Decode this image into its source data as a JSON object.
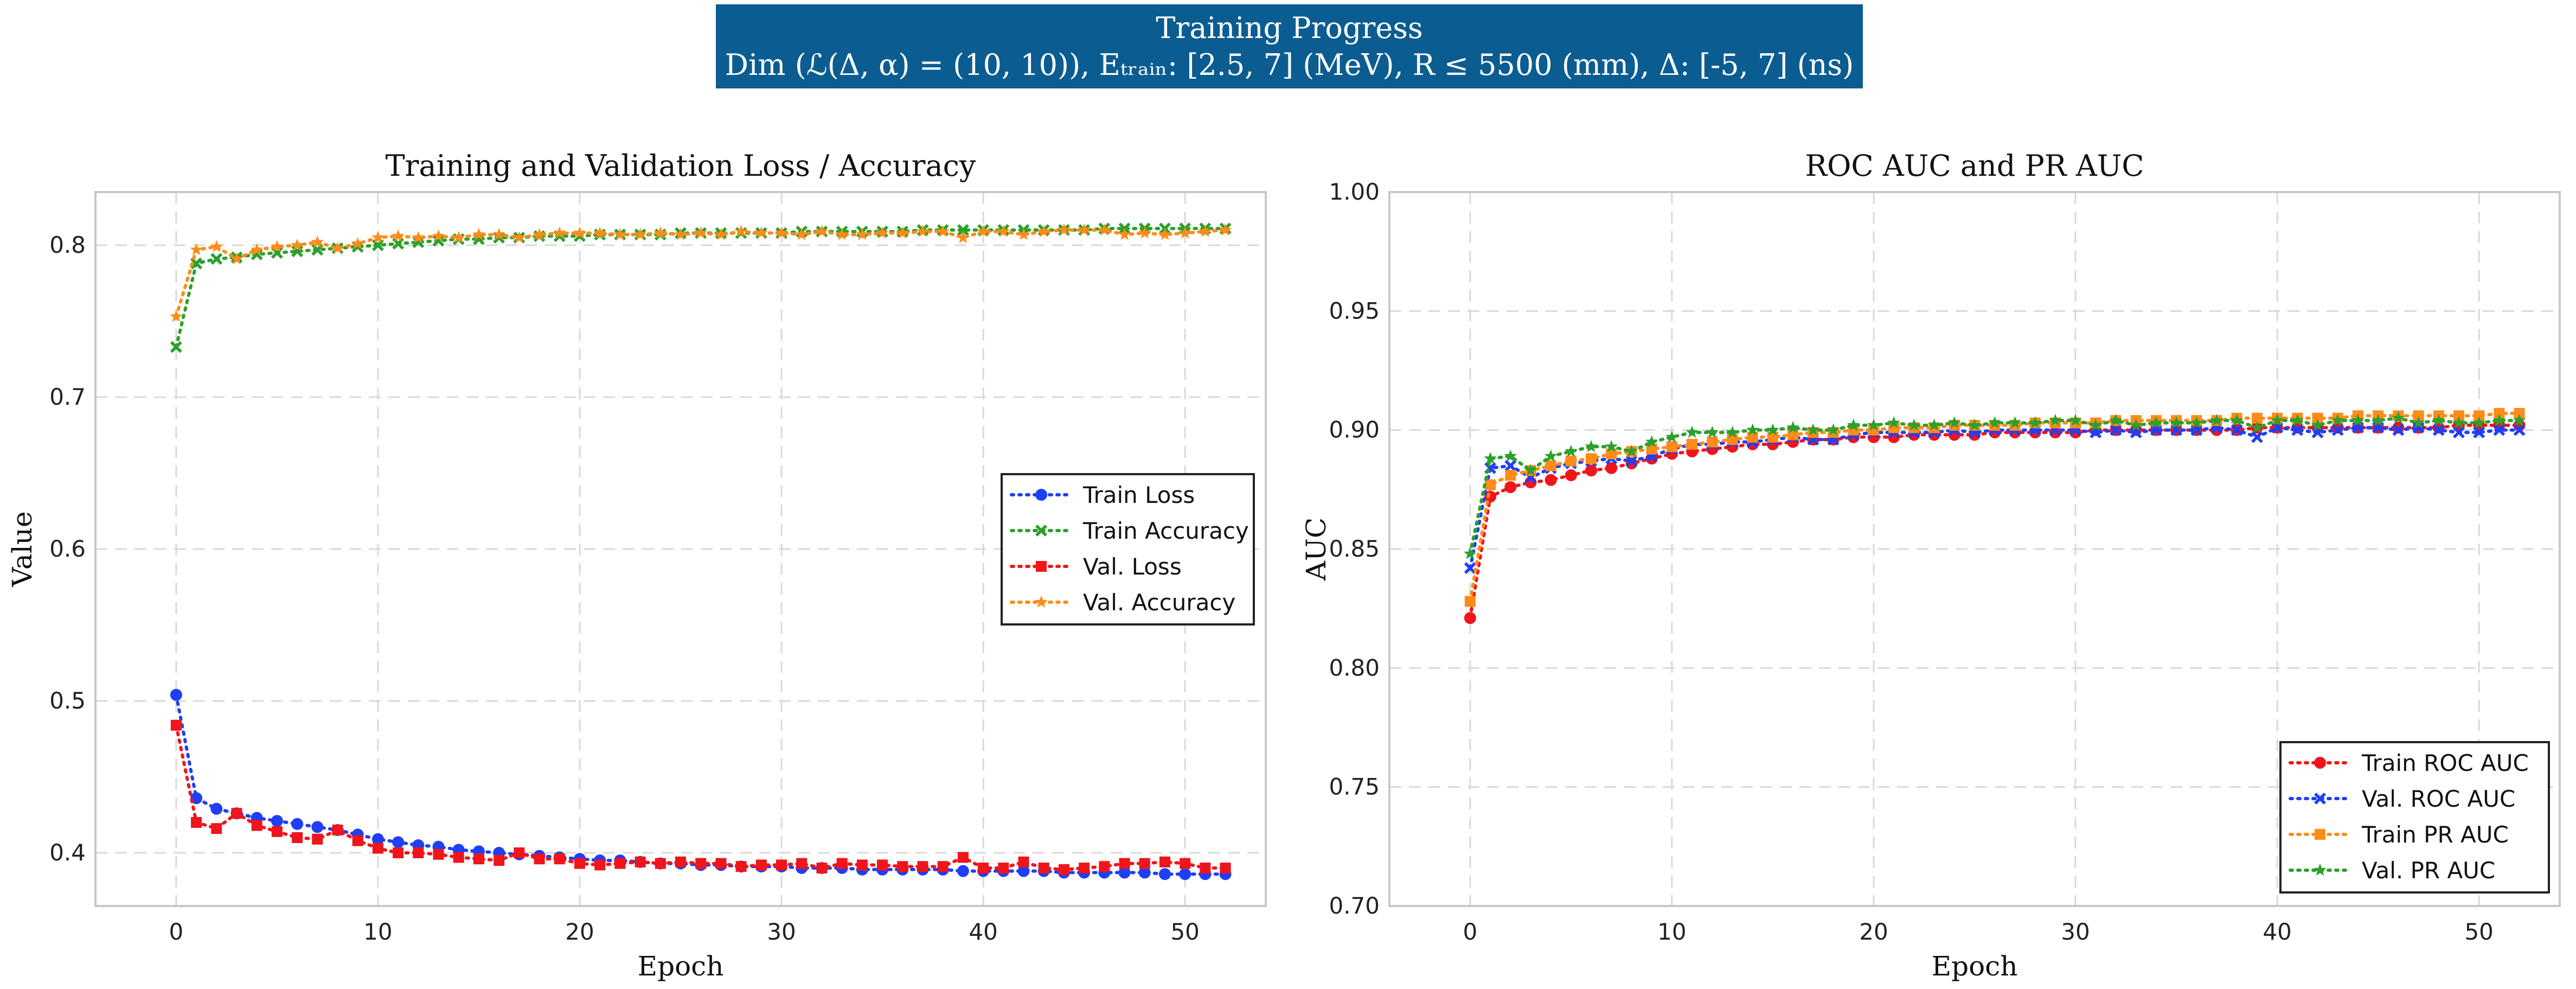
{
  "header": {
    "title": "Training Progress",
    "subtitle": "Dim (ℒ(Δ, α) = (10, 10)), Eₜᵣₐᵢₙ: [2.5, 7] (MeV), R ≤ 5500 (mm), Δ: [-5, 7] (ns)"
  },
  "chart_data": [
    {
      "type": "line",
      "title": "Training and Validation Loss / Accuracy",
      "xlabel": "Epoch",
      "ylabel": "Value",
      "xlim": [
        -4,
        54
      ],
      "ylim": [
        0.365,
        0.835
      ],
      "xticks": [
        0,
        10,
        20,
        30,
        40,
        50
      ],
      "yticks": [
        0.4,
        0.5,
        0.6,
        0.7,
        0.8
      ],
      "grid": true,
      "legend": "center-right",
      "x": [
        0,
        1,
        2,
        3,
        4,
        5,
        6,
        7,
        8,
        9,
        10,
        11,
        12,
        13,
        14,
        15,
        16,
        17,
        18,
        19,
        20,
        21,
        22,
        23,
        24,
        25,
        26,
        27,
        28,
        29,
        30,
        31,
        32,
        33,
        34,
        35,
        36,
        37,
        38,
        39,
        40,
        41,
        42,
        43,
        44,
        45,
        46,
        47,
        48,
        49,
        50,
        51,
        52
      ],
      "series": [
        {
          "name": "Train Loss",
          "color": "#1f3ff5",
          "marker": "circle",
          "values": [
            0.504,
            0.436,
            0.429,
            0.426,
            0.423,
            0.421,
            0.419,
            0.417,
            0.415,
            0.412,
            0.409,
            0.407,
            0.405,
            0.404,
            0.402,
            0.401,
            0.4,
            0.399,
            0.398,
            0.397,
            0.396,
            0.395,
            0.395,
            0.394,
            0.393,
            0.393,
            0.392,
            0.392,
            0.391,
            0.391,
            0.391,
            0.39,
            0.39,
            0.39,
            0.389,
            0.389,
            0.389,
            0.389,
            0.389,
            0.388,
            0.388,
            0.388,
            0.388,
            0.388,
            0.387,
            0.387,
            0.387,
            0.387,
            0.387,
            0.386,
            0.386,
            0.386,
            0.386
          ]
        },
        {
          "name": "Train Accuracy",
          "color": "#2ca02c",
          "marker": "x",
          "values": [
            0.733,
            0.788,
            0.791,
            0.792,
            0.794,
            0.795,
            0.796,
            0.797,
            0.798,
            0.799,
            0.8,
            0.801,
            0.802,
            0.803,
            0.804,
            0.804,
            0.805,
            0.805,
            0.806,
            0.806,
            0.806,
            0.807,
            0.807,
            0.807,
            0.807,
            0.808,
            0.808,
            0.808,
            0.808,
            0.808,
            0.808,
            0.809,
            0.809,
            0.809,
            0.809,
            0.809,
            0.809,
            0.81,
            0.81,
            0.81,
            0.81,
            0.81,
            0.81,
            0.81,
            0.81,
            0.81,
            0.811,
            0.811,
            0.811,
            0.811,
            0.811,
            0.811,
            0.811
          ]
        },
        {
          "name": "Val. Loss",
          "color": "#f0151b",
          "marker": "square",
          "values": [
            0.484,
            0.42,
            0.416,
            0.426,
            0.418,
            0.414,
            0.41,
            0.409,
            0.415,
            0.408,
            0.403,
            0.4,
            0.4,
            0.399,
            0.397,
            0.396,
            0.395,
            0.4,
            0.396,
            0.396,
            0.393,
            0.392,
            0.393,
            0.394,
            0.393,
            0.394,
            0.393,
            0.393,
            0.391,
            0.392,
            0.392,
            0.393,
            0.39,
            0.393,
            0.392,
            0.392,
            0.391,
            0.391,
            0.391,
            0.397,
            0.39,
            0.39,
            0.394,
            0.39,
            0.389,
            0.39,
            0.391,
            0.393,
            0.393,
            0.394,
            0.393,
            0.39,
            0.39
          ]
        },
        {
          "name": "Val. Accuracy",
          "color": "#ff8c1a",
          "marker": "star",
          "values": [
            0.753,
            0.797,
            0.799,
            0.791,
            0.797,
            0.799,
            0.8,
            0.802,
            0.798,
            0.801,
            0.805,
            0.806,
            0.805,
            0.806,
            0.805,
            0.807,
            0.807,
            0.805,
            0.807,
            0.808,
            0.808,
            0.808,
            0.807,
            0.807,
            0.808,
            0.807,
            0.808,
            0.807,
            0.809,
            0.808,
            0.808,
            0.807,
            0.809,
            0.807,
            0.807,
            0.808,
            0.808,
            0.809,
            0.809,
            0.805,
            0.809,
            0.809,
            0.807,
            0.809,
            0.81,
            0.81,
            0.81,
            0.807,
            0.808,
            0.807,
            0.808,
            0.809,
            0.81
          ]
        }
      ]
    },
    {
      "type": "line",
      "title": "ROC AUC and PR AUC",
      "xlabel": "Epoch",
      "ylabel": "AUC",
      "xlim": [
        -4,
        54
      ],
      "ylim": [
        0.7,
        1.0
      ],
      "xticks": [
        0,
        10,
        20,
        30,
        40,
        50
      ],
      "yticks": [
        0.7,
        0.75,
        0.8,
        0.85,
        0.9,
        0.95,
        1.0
      ],
      "grid": true,
      "legend": "bottom-right",
      "x": [
        0,
        1,
        2,
        3,
        4,
        5,
        6,
        7,
        8,
        9,
        10,
        11,
        12,
        13,
        14,
        15,
        16,
        17,
        18,
        19,
        20,
        21,
        22,
        23,
        24,
        25,
        26,
        27,
        28,
        29,
        30,
        31,
        32,
        33,
        34,
        35,
        36,
        37,
        38,
        39,
        40,
        41,
        42,
        43,
        44,
        45,
        46,
        47,
        48,
        49,
        50,
        51,
        52
      ],
      "series": [
        {
          "name": "Train ROC AUC",
          "color": "#f0151b",
          "marker": "circle",
          "values": [
            0.821,
            0.872,
            0.876,
            0.878,
            0.879,
            0.881,
            0.883,
            0.884,
            0.886,
            0.888,
            0.89,
            0.891,
            0.892,
            0.893,
            0.894,
            0.894,
            0.895,
            0.896,
            0.896,
            0.897,
            0.897,
            0.897,
            0.898,
            0.898,
            0.898,
            0.898,
            0.899,
            0.899,
            0.899,
            0.899,
            0.899,
            0.9,
            0.9,
            0.9,
            0.9,
            0.9,
            0.9,
            0.9,
            0.9,
            0.901,
            0.901,
            0.901,
            0.901,
            0.901,
            0.901,
            0.901,
            0.901,
            0.901,
            0.901,
            0.902,
            0.902,
            0.902,
            0.902
          ]
        },
        {
          "name": "Val. ROC AUC",
          "color": "#1f3ff5",
          "marker": "x",
          "values": [
            0.842,
            0.884,
            0.885,
            0.88,
            0.884,
            0.886,
            0.887,
            0.888,
            0.887,
            0.889,
            0.892,
            0.894,
            0.894,
            0.895,
            0.895,
            0.896,
            0.897,
            0.896,
            0.896,
            0.898,
            0.899,
            0.899,
            0.899,
            0.899,
            0.9,
            0.899,
            0.9,
            0.9,
            0.9,
            0.9,
            0.9,
            0.899,
            0.9,
            0.899,
            0.9,
            0.9,
            0.9,
            0.901,
            0.9,
            0.897,
            0.901,
            0.9,
            0.899,
            0.9,
            0.901,
            0.901,
            0.9,
            0.901,
            0.9,
            0.899,
            0.899,
            0.9,
            0.9
          ]
        },
        {
          "name": "Train PR AUC",
          "color": "#ff8c1a",
          "marker": "square",
          "values": [
            0.828,
            0.877,
            0.881,
            0.883,
            0.885,
            0.887,
            0.888,
            0.89,
            0.891,
            0.892,
            0.893,
            0.894,
            0.895,
            0.896,
            0.897,
            0.897,
            0.898,
            0.899,
            0.899,
            0.9,
            0.9,
            0.901,
            0.901,
            0.901,
            0.902,
            0.902,
            0.902,
            0.902,
            0.903,
            0.903,
            0.903,
            0.903,
            0.904,
            0.904,
            0.904,
            0.904,
            0.904,
            0.904,
            0.905,
            0.905,
            0.905,
            0.905,
            0.905,
            0.905,
            0.906,
            0.906,
            0.906,
            0.906,
            0.906,
            0.906,
            0.906,
            0.907,
            0.907
          ]
        },
        {
          "name": "Val. PR AUC",
          "color": "#2ca02c",
          "marker": "star",
          "values": [
            0.848,
            0.888,
            0.889,
            0.883,
            0.889,
            0.891,
            0.893,
            0.893,
            0.891,
            0.895,
            0.897,
            0.899,
            0.899,
            0.899,
            0.9,
            0.9,
            0.901,
            0.9,
            0.9,
            0.902,
            0.902,
            0.903,
            0.902,
            0.902,
            0.903,
            0.902,
            0.903,
            0.903,
            0.903,
            0.904,
            0.904,
            0.902,
            0.904,
            0.902,
            0.903,
            0.903,
            0.903,
            0.904,
            0.904,
            0.901,
            0.904,
            0.904,
            0.902,
            0.904,
            0.904,
            0.904,
            0.905,
            0.903,
            0.904,
            0.903,
            0.903,
            0.904,
            0.904
          ]
        }
      ]
    }
  ]
}
